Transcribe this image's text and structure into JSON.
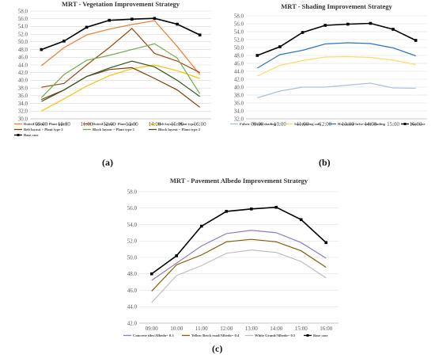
{
  "captions": [
    "(a)",
    "(b)",
    "(c)"
  ],
  "chart_data": [
    {
      "type": "line",
      "title": "MRT - Vegetation Improvement Strategy",
      "categories": [
        "09:00",
        "10:00",
        "11:00",
        "12:00",
        "13:00",
        "14:00",
        "15:00",
        "16:00"
      ],
      "ylim": [
        30,
        58
      ],
      "yticks": [
        "30.0",
        "32.0",
        "34.0",
        "36.0",
        "38.0",
        "40.0",
        "42.0",
        "44.0",
        "46.0",
        "48.0",
        "50.0",
        "52.0",
        "54.0",
        "56.0",
        "58.0"
      ],
      "grid": true,
      "legend": "bottom",
      "series": [
        {
          "name": "Dotted layout + Plant type 1",
          "color": "#ED7D31",
          "values": [
            43.8,
            48.5,
            51.8,
            53.3,
            54.5,
            55.5,
            48.8,
            41.5
          ]
        },
        {
          "name": "Dotted layout + Plant type 2",
          "color": "#9E480E",
          "values": [
            38.2,
            39.2,
            44.0,
            48.5,
            53.5,
            47.0,
            45.0,
            42.0
          ]
        },
        {
          "name": "Belt layout + Plant type 1",
          "color": "#FFC000",
          "values": [
            32.0,
            35.2,
            38.5,
            41.2,
            43.0,
            44.0,
            42.5,
            40.5
          ]
        },
        {
          "name": "Belt layout + Plant type 2",
          "color": "#843C0C",
          "values": [
            35.0,
            37.5,
            41.0,
            42.8,
            43.3,
            40.5,
            37.5,
            33.0
          ]
        },
        {
          "name": "Block layout + Plant type 1",
          "color": "#70AD47",
          "values": [
            35.5,
            41.5,
            45.2,
            46.5,
            48.0,
            49.5,
            45.8,
            36.5
          ]
        },
        {
          "name": "Block layout + Plant type 2",
          "color": "#375623",
          "values": [
            34.5,
            37.5,
            41.0,
            43.2,
            45.0,
            43.5,
            40.0,
            35.8
          ]
        },
        {
          "name": "Base case",
          "color": "#000000",
          "values": [
            48.0,
            50.2,
            53.8,
            55.6,
            55.9,
            56.1,
            54.6,
            51.8
          ]
        }
      ]
    },
    {
      "type": "line",
      "title": "MRT - Shading Improvement  Strategy",
      "categories": [
        "09:00",
        "10:00",
        "11:00",
        "12:00",
        "13:00",
        "14:00",
        "15:00",
        "16:00"
      ],
      "ylim": [
        32,
        58
      ],
      "yticks": [
        "32.0",
        "34.0",
        "36.0",
        "38.0",
        "40.0",
        "42.0",
        "44.0",
        "46.0",
        "48.0",
        "50.0",
        "52.0",
        "54.0",
        "56.0",
        "58.0"
      ],
      "grid": true,
      "legend": "bottom",
      "series": [
        {
          "name": "Fabric / Textile shading",
          "color": "#A9C1DE",
          "values": [
            37.3,
            39.0,
            40.0,
            40.0,
            40.5,
            41.0,
            39.8,
            39.7
          ]
        },
        {
          "name": "Sun-shading sails",
          "color": "#FFD966",
          "values": [
            42.8,
            45.5,
            46.7,
            47.6,
            47.7,
            47.5,
            46.8,
            45.7
          ]
        },
        {
          "name": "Horizontal brise-soleil shading",
          "color": "#2E75B6",
          "values": [
            44.8,
            48.2,
            49.3,
            50.9,
            51.2,
            51.0,
            49.9,
            47.9
          ]
        },
        {
          "name": "Base case",
          "color": "#000000",
          "values": [
            48.0,
            50.2,
            53.8,
            55.6,
            55.9,
            56.1,
            54.6,
            51.8
          ]
        }
      ]
    },
    {
      "type": "line",
      "title": "MRT - Pavement Albedo Improvement Strategy",
      "categories": [
        "09:00",
        "10:00",
        "11:00",
        "12:00",
        "13:00",
        "14:00",
        "15:00",
        "16:00"
      ],
      "ylim": [
        42,
        58
      ],
      "yticks": [
        "42.0",
        "44.0",
        "46.0",
        "48.0",
        "50.0",
        "52.0",
        "54.0",
        "56.0",
        "58.0"
      ],
      "grid": true,
      "legend": "bottom",
      "series": [
        {
          "name": "Concrete tiles/Albedo= 0.3",
          "color": "#8E7CC3",
          "values": [
            47.2,
            49.3,
            51.4,
            52.9,
            53.3,
            53.0,
            51.8,
            49.9
          ]
        },
        {
          "name": "Yellow Brick road/Albedo= 0.4",
          "color": "#7F6000",
          "values": [
            45.9,
            49.1,
            50.3,
            51.9,
            52.2,
            51.9,
            50.8,
            48.8
          ]
        },
        {
          "name": "White Granit/Albedo= 0.5",
          "color": "#BFBFBF",
          "values": [
            44.5,
            47.8,
            49.0,
            50.5,
            50.9,
            50.6,
            49.5,
            47.5
          ]
        },
        {
          "name": "Base case",
          "color": "#000000",
          "values": [
            48.0,
            50.2,
            53.8,
            55.6,
            55.9,
            56.1,
            54.6,
            51.8
          ]
        }
      ]
    }
  ]
}
